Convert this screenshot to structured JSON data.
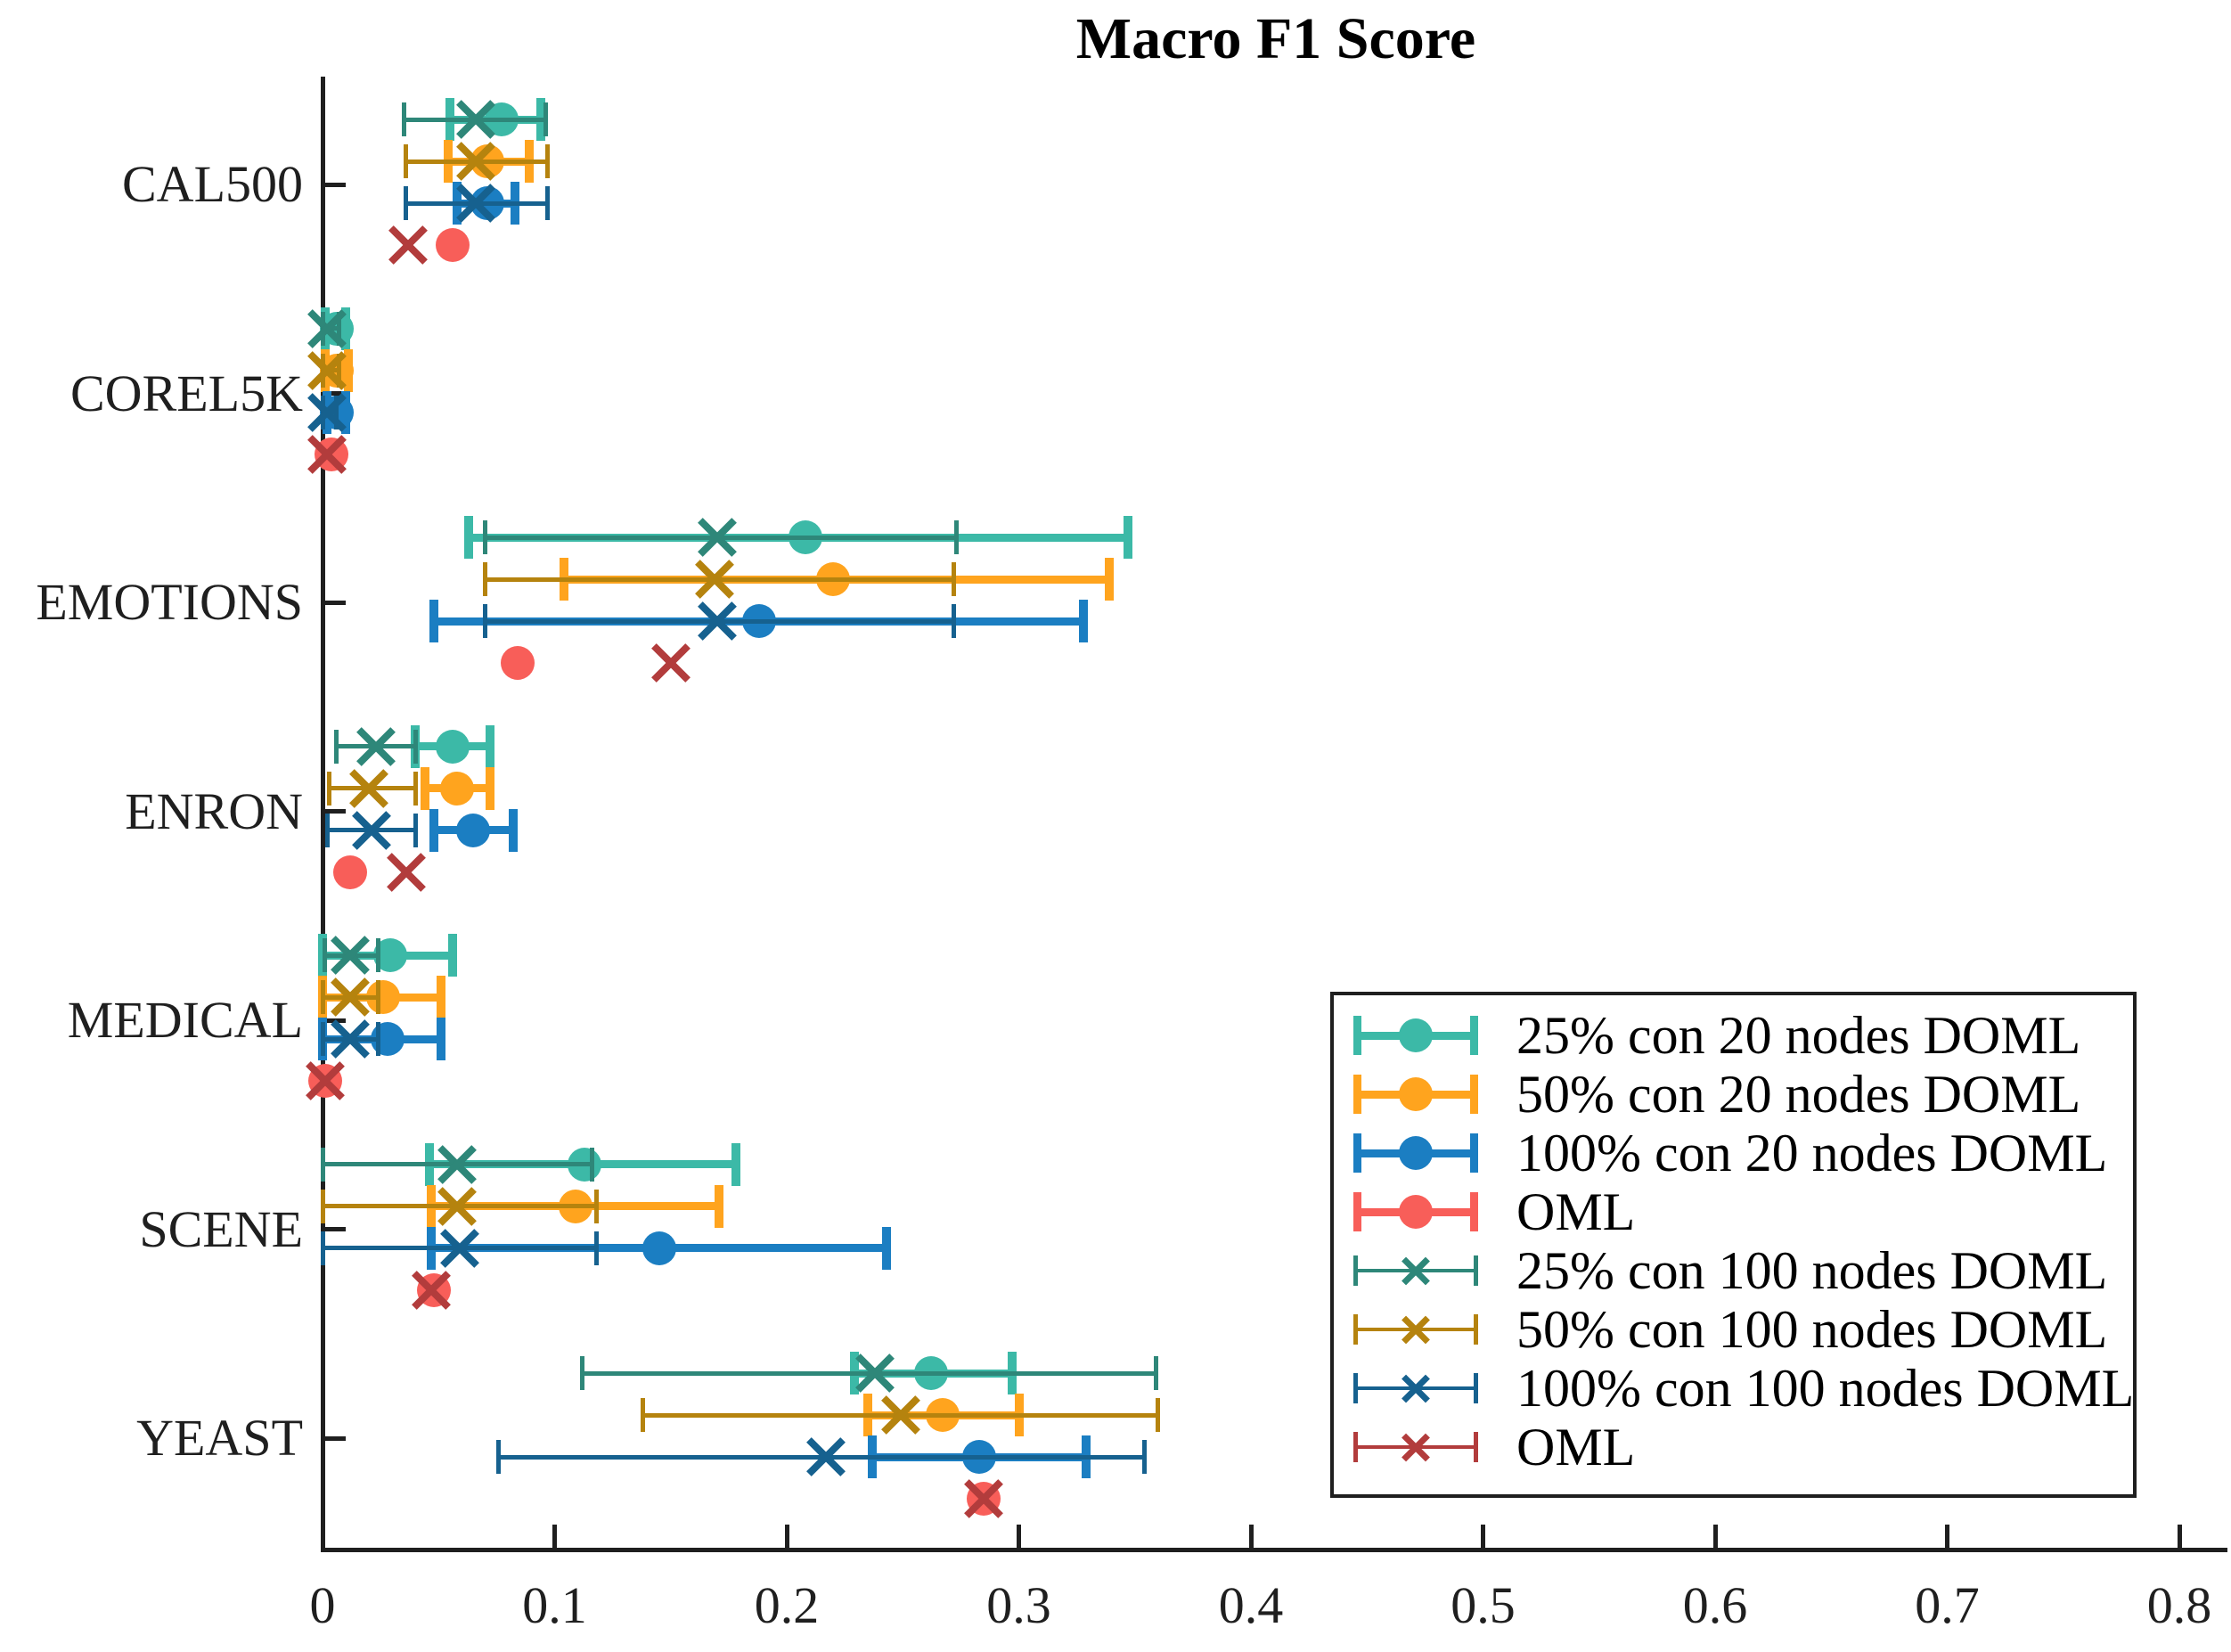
{
  "figure": {
    "title": "Macro F1 Score"
  },
  "chart_data": {
    "type": "errorbar",
    "orientation": "horizontal",
    "title": "Macro F1 Score",
    "categories": [
      "CAL500",
      "COREL5K",
      "EMOTIONS",
      "ENRON",
      "MEDICAL",
      "SCENE",
      "YEAST"
    ],
    "xlim": [
      0,
      0.82
    ],
    "xtick_labels": [
      "0",
      "0.1",
      "0.2",
      "0.3",
      "0.4",
      "0.5",
      "0.6",
      "0.7",
      "0.8"
    ],
    "xtick_values": [
      0,
      0.1,
      0.2,
      0.3,
      0.4,
      0.5,
      0.6,
      0.7,
      0.8
    ],
    "grid": false,
    "legend_position": "inside-lower-right",
    "axis_color": "#1f1f1f",
    "series": [
      {
        "name": "25% con 20 nodes DOML",
        "color": "#3CB9A7",
        "line": "thick",
        "marker": "circle",
        "row": 0,
        "data": [
          [
            0.077,
            0.055,
            0.094
          ],
          [
            0.006,
            0.001,
            0.01
          ],
          [
            0.208,
            0.063,
            0.347
          ],
          [
            0.056,
            0.04,
            0.072
          ],
          [
            0.029,
            0.0,
            0.056
          ],
          [
            0.113,
            0.046,
            0.178
          ],
          [
            0.262,
            0.229,
            0.297
          ]
        ]
      },
      {
        "name": "50% con 20 nodes DOML",
        "color": "#FFA41E",
        "line": "thick",
        "marker": "circle",
        "row": 1,
        "data": [
          [
            0.071,
            0.054,
            0.089
          ],
          [
            0.006,
            0.001,
            0.011
          ],
          [
            0.22,
            0.104,
            0.339
          ],
          [
            0.058,
            0.044,
            0.072
          ],
          [
            0.026,
            0.0,
            0.051
          ],
          [
            0.109,
            0.047,
            0.171
          ],
          [
            0.267,
            0.235,
            0.3
          ]
        ]
      },
      {
        "name": "100% con 20 nodes DOML",
        "color": "#1B7EC2",
        "line": "thick",
        "marker": "circle",
        "row": 2,
        "data": [
          [
            0.071,
            0.058,
            0.083
          ],
          [
            0.006,
            0.002,
            0.01
          ],
          [
            0.188,
            0.048,
            0.328
          ],
          [
            0.065,
            0.048,
            0.082
          ],
          [
            0.028,
            0.0,
            0.051
          ],
          [
            0.145,
            0.047,
            0.243
          ],
          [
            0.283,
            0.237,
            0.329
          ]
        ]
      },
      {
        "name": "OML",
        "color": "#F85E59",
        "line": "thick",
        "marker": "circle",
        "row": 3,
        "data": [
          [
            0.056,
            0.056,
            0.056
          ],
          [
            0.004,
            0.004,
            0.004
          ],
          [
            0.084,
            0.084,
            0.084
          ],
          [
            0.012,
            0.012,
            0.012
          ],
          [
            0.001,
            0.001,
            0.001
          ],
          [
            0.048,
            0.048,
            0.048
          ],
          [
            0.285,
            0.285,
            0.285
          ]
        ]
      },
      {
        "name": "25% con 100 nodes DOML",
        "color": "#2E8779",
        "line": "thin",
        "marker": "x",
        "row": 0,
        "data": [
          [
            0.066,
            0.035,
            0.096
          ],
          [
            0.002,
            0.0,
            0.007
          ],
          [
            0.17,
            0.07,
            0.273
          ],
          [
            0.023,
            0.006,
            0.04
          ],
          [
            0.012,
            0.001,
            0.024
          ],
          [
            0.058,
            0.0,
            0.116
          ],
          [
            0.238,
            0.112,
            0.359
          ]
        ]
      },
      {
        "name": "50% con 100 nodes DOML",
        "color": "#B5830E",
        "line": "thin",
        "marker": "x",
        "row": 1,
        "data": [
          [
            0.066,
            0.036,
            0.097
          ],
          [
            0.002,
            0.0,
            0.007
          ],
          [
            0.169,
            0.07,
            0.272
          ],
          [
            0.02,
            0.003,
            0.04
          ],
          [
            0.012,
            0.0,
            0.024
          ],
          [
            0.058,
            0.0,
            0.118
          ],
          [
            0.249,
            0.138,
            0.36
          ]
        ]
      },
      {
        "name": "100% con 100 nodes DOML",
        "color": "#16618F",
        "line": "thin",
        "marker": "x",
        "row": 2,
        "data": [
          [
            0.066,
            0.036,
            0.097
          ],
          [
            0.002,
            0.0,
            0.006
          ],
          [
            0.17,
            0.07,
            0.272
          ],
          [
            0.021,
            0.002,
            0.04
          ],
          [
            0.012,
            0.0,
            0.024
          ],
          [
            0.059,
            0.0,
            0.118
          ],
          [
            0.217,
            0.076,
            0.354
          ]
        ]
      },
      {
        "name": "OML",
        "color": "#B23C3C",
        "line": "thin",
        "marker": "x",
        "row": 3,
        "data": [
          [
            0.037,
            0.037,
            0.037
          ],
          [
            0.002,
            0.002,
            0.002
          ],
          [
            0.15,
            0.15,
            0.15
          ],
          [
            0.036,
            0.036,
            0.036
          ],
          [
            0.001,
            0.001,
            0.001
          ],
          [
            0.047,
            0.047,
            0.047
          ],
          [
            0.285,
            0.285,
            0.285
          ]
        ]
      }
    ]
  }
}
